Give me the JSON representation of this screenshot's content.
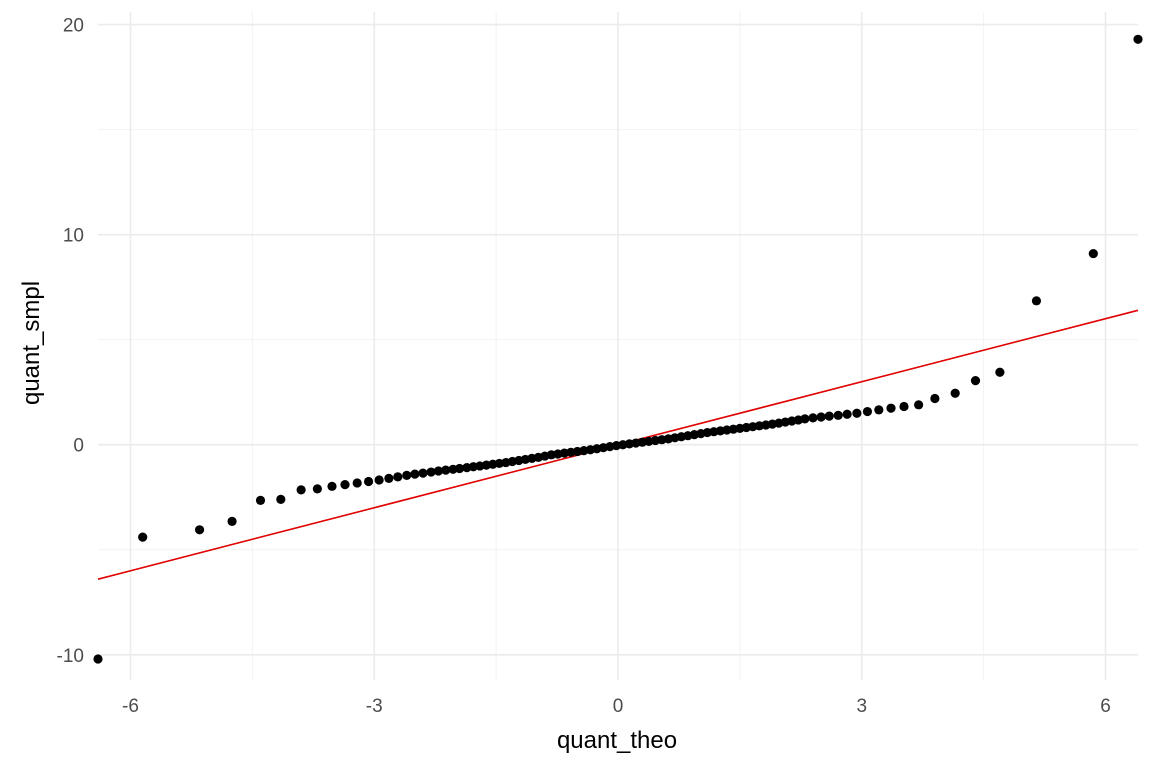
{
  "chart_data": {
    "type": "scatter",
    "title": "",
    "xlabel": "quant_theo",
    "ylabel": "quant_smpl",
    "xlim": [
      -6.4,
      6.4
    ],
    "ylim": [
      -11.2,
      20.6
    ],
    "x_ticks": [
      -6,
      -3,
      0,
      3,
      6
    ],
    "x_tick_labels": [
      "-6",
      "-3",
      "0",
      "3",
      "6"
    ],
    "y_ticks": [
      -10,
      0,
      10,
      20
    ],
    "y_tick_labels": [
      "-10",
      "0",
      "10",
      "20"
    ],
    "grid": true,
    "legend": "none",
    "colors": {
      "points": "#000000",
      "reference_line": "#e00000",
      "grid": "#ebebeb"
    },
    "reference_line": {
      "slope": 1,
      "intercept": 0
    },
    "series": [
      {
        "points": [
          [
            -6.4,
            -10.2
          ],
          [
            -5.85,
            -4.4
          ],
          [
            -5.15,
            -4.05
          ],
          [
            -4.75,
            -3.65
          ],
          [
            -4.4,
            -2.65
          ],
          [
            -4.15,
            -2.6
          ],
          [
            -3.9,
            -2.15
          ],
          [
            -3.7,
            -2.1
          ],
          [
            -3.52,
            -1.98
          ],
          [
            -3.36,
            -1.9
          ],
          [
            -3.21,
            -1.82
          ],
          [
            -3.07,
            -1.75
          ],
          [
            -2.94,
            -1.68
          ],
          [
            -2.82,
            -1.6
          ],
          [
            -2.71,
            -1.53
          ],
          [
            -2.6,
            -1.46
          ],
          [
            -2.5,
            -1.4
          ],
          [
            -2.4,
            -1.35
          ],
          [
            -2.3,
            -1.3
          ],
          [
            -2.21,
            -1.25
          ],
          [
            -2.12,
            -1.21
          ],
          [
            -2.03,
            -1.17
          ],
          [
            -1.95,
            -1.13
          ],
          [
            -1.86,
            -1.09
          ],
          [
            -1.78,
            -1.05
          ],
          [
            -1.7,
            -1.01
          ],
          [
            -1.62,
            -0.97
          ],
          [
            -1.54,
            -0.93
          ],
          [
            -1.46,
            -0.89
          ],
          [
            -1.38,
            -0.85
          ],
          [
            -1.3,
            -0.8
          ],
          [
            -1.22,
            -0.75
          ],
          [
            -1.14,
            -0.7
          ],
          [
            -1.06,
            -0.65
          ],
          [
            -0.98,
            -0.6
          ],
          [
            -0.9,
            -0.54
          ],
          [
            -0.82,
            -0.48
          ],
          [
            -0.74,
            -0.44
          ],
          [
            -0.66,
            -0.4
          ],
          [
            -0.58,
            -0.36
          ],
          [
            -0.5,
            -0.32
          ],
          [
            -0.42,
            -0.28
          ],
          [
            -0.34,
            -0.24
          ],
          [
            -0.26,
            -0.19
          ],
          [
            -0.18,
            -0.14
          ],
          [
            -0.1,
            -0.09
          ],
          [
            -0.02,
            -0.04
          ],
          [
            0.06,
            0.0
          ],
          [
            0.14,
            0.04
          ],
          [
            0.22,
            0.08
          ],
          [
            0.3,
            0.12
          ],
          [
            0.38,
            0.16
          ],
          [
            0.46,
            0.2
          ],
          [
            0.54,
            0.24
          ],
          [
            0.62,
            0.28
          ],
          [
            0.7,
            0.33
          ],
          [
            0.78,
            0.38
          ],
          [
            0.86,
            0.43
          ],
          [
            0.94,
            0.48
          ],
          [
            1.02,
            0.53
          ],
          [
            1.1,
            0.58
          ],
          [
            1.18,
            0.62
          ],
          [
            1.26,
            0.66
          ],
          [
            1.34,
            0.7
          ],
          [
            1.42,
            0.74
          ],
          [
            1.5,
            0.78
          ],
          [
            1.58,
            0.82
          ],
          [
            1.66,
            0.86
          ],
          [
            1.74,
            0.9
          ],
          [
            1.82,
            0.94
          ],
          [
            1.9,
            0.98
          ],
          [
            1.98,
            1.03
          ],
          [
            2.06,
            1.08
          ],
          [
            2.14,
            1.13
          ],
          [
            2.22,
            1.18
          ],
          [
            2.3,
            1.23
          ],
          [
            2.4,
            1.28
          ],
          [
            2.5,
            1.32
          ],
          [
            2.6,
            1.36
          ],
          [
            2.71,
            1.4
          ],
          [
            2.82,
            1.45
          ],
          [
            2.94,
            1.5
          ],
          [
            3.07,
            1.58
          ],
          [
            3.21,
            1.66
          ],
          [
            3.36,
            1.74
          ],
          [
            3.52,
            1.82
          ],
          [
            3.7,
            1.9
          ],
          [
            3.9,
            2.2
          ],
          [
            4.15,
            2.45
          ],
          [
            4.4,
            3.05
          ],
          [
            4.7,
            3.45
          ],
          [
            5.15,
            6.85
          ],
          [
            5.85,
            9.1
          ],
          [
            6.4,
            19.3
          ]
        ]
      }
    ]
  }
}
